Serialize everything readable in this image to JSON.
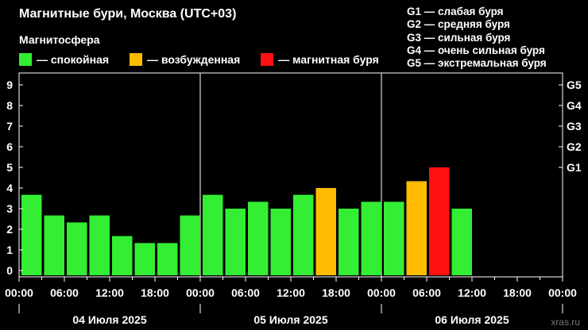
{
  "header": {
    "title": "Магнитные бури, Москва (UTC+03)",
    "subtitle": "Магнитосфера"
  },
  "legend": [
    {
      "label": "— спокойная",
      "color": "#33ee33"
    },
    {
      "label": "— возбужденная",
      "color": "#ffbb00"
    },
    {
      "label": "— магнитная буря",
      "color": "#ff1111"
    }
  ],
  "storm_scale": [
    "G1 — слабая буря",
    "G2 — средняя буря",
    "G3 — сильная буря",
    "G4 — очень сильная буря",
    "G5 — экстремальная буря"
  ],
  "watermark": "xras.ru",
  "chart_data": {
    "type": "bar",
    "title": "Магнитные бури, Москва (UTC+03)",
    "ylim": [
      0,
      9
    ],
    "y_ticks": [
      "0",
      "1",
      "2",
      "3",
      "4",
      "5",
      "6",
      "7",
      "8",
      "9"
    ],
    "y_right_ticks": [
      {
        "value": 5,
        "label": "G1"
      },
      {
        "value": 6,
        "label": "G2"
      },
      {
        "value": 7,
        "label": "G3"
      },
      {
        "value": 8,
        "label": "G4"
      },
      {
        "value": 9,
        "label": "G5"
      }
    ],
    "x_tick_labels": [
      "00:00",
      "06:00",
      "12:00",
      "18:00",
      "00:00",
      "06:00",
      "12:00",
      "18:00",
      "00:00",
      "06:00",
      "12:00",
      "18:00",
      "00:00"
    ],
    "day_labels": [
      "04 Июля 2025",
      "05 Июля 2025",
      "06 Июля 2025"
    ],
    "grid": false,
    "values": [
      3.67,
      2.67,
      2.33,
      2.67,
      1.67,
      1.33,
      1.33,
      2.67,
      3.67,
      3.0,
      3.33,
      3.0,
      3.67,
      4.0,
      3.0,
      3.33,
      3.33,
      4.33,
      5.0,
      3.0
    ],
    "levels": [
      "calm",
      "calm",
      "calm",
      "calm",
      "calm",
      "calm",
      "calm",
      "calm",
      "calm",
      "calm",
      "calm",
      "calm",
      "calm",
      "excited",
      "calm",
      "calm",
      "calm",
      "excited",
      "storm",
      "calm"
    ],
    "level_colors": {
      "calm": "#33ee33",
      "excited": "#ffbb00",
      "storm": "#ff1111"
    }
  }
}
